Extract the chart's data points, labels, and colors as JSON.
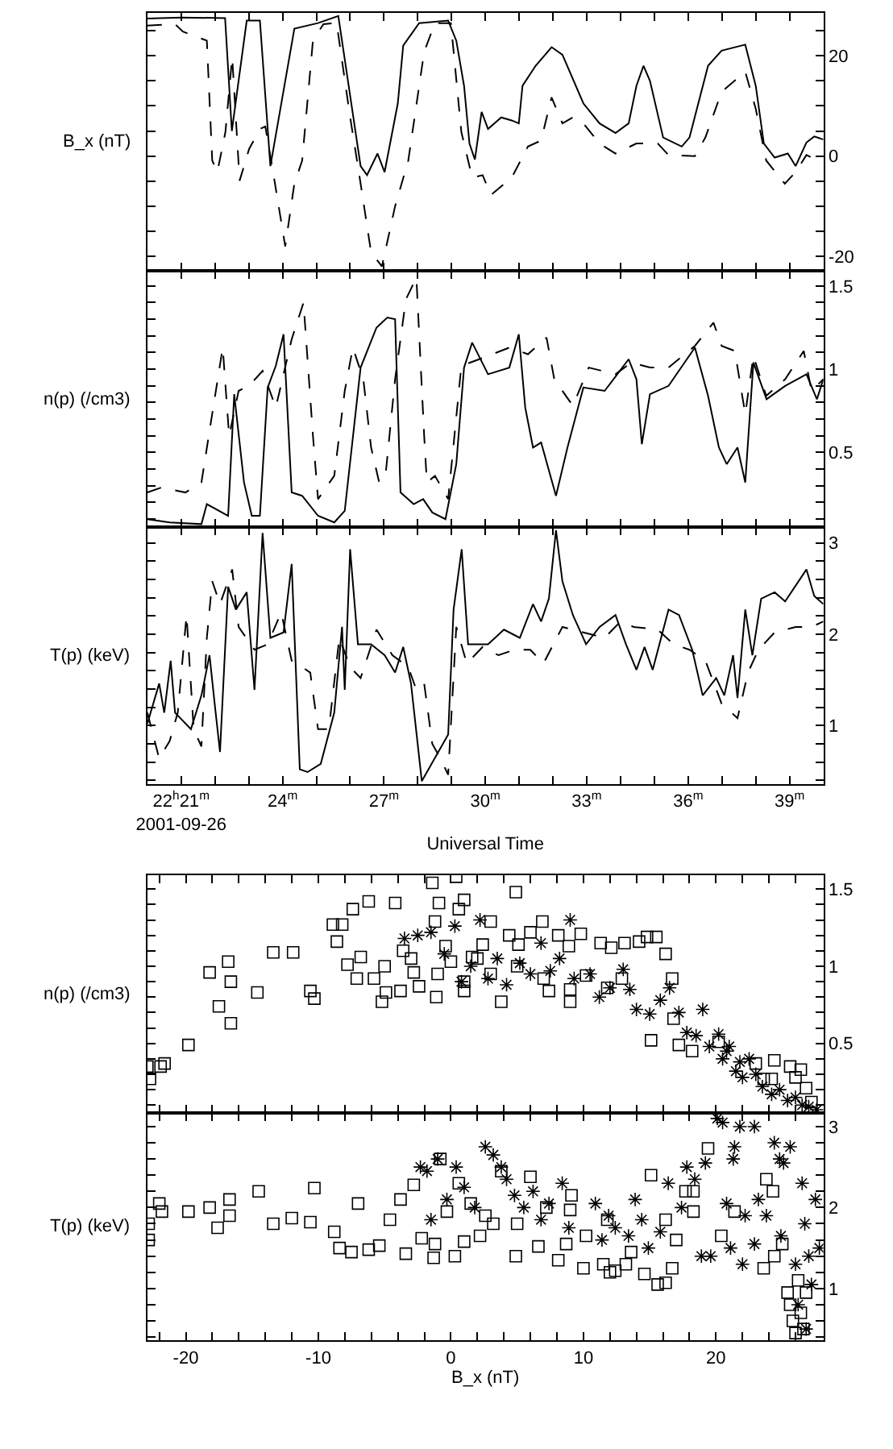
{
  "chart_data": [
    {
      "type": "line",
      "ylabel": "B_x (nT)",
      "tick_labels": "y",
      "xlim": [
        20,
        40
      ],
      "xticks": [
        {
          "value": 21,
          "label": "22$^{h}$21$^{m}$\n2001-09-26"
        },
        {
          "value": 22,
          "label": null
        },
        {
          "value": 23,
          "label": null
        },
        {
          "value": 24,
          "label": "24$^{m}$"
        },
        {
          "value": 25,
          "label": null
        },
        {
          "value": 26,
          "label": null
        },
        {
          "value": 27,
          "label": "27$^{m}$"
        },
        {
          "value": 28,
          "label": null
        },
        {
          "value": 29,
          "label": null
        },
        {
          "value": 30,
          "label": "30$^{m}$"
        },
        {
          "value": 31,
          "label": null
        },
        {
          "value": 32,
          "label": null
        },
        {
          "value": 33,
          "label": "33$^{m}$"
        },
        {
          "value": 34,
          "label": null
        },
        {
          "value": 35,
          "label": null
        },
        {
          "value": 36,
          "label": "36$^{m}$"
        },
        {
          "value": 37,
          "label": null
        },
        {
          "value": 38,
          "label": null
        },
        {
          "value": 39,
          "label": "39$^{m}$"
        }
      ],
      "ylim": [
        -22.9,
        28.5
      ],
      "yticks": [
        -20,
        {
          "value": -15,
          "label": null
        },
        {
          "value": -10,
          "label": null
        },
        {
          "value": -5,
          "label": null
        },
        0,
        {
          "value": 5,
          "label": null
        },
        {
          "value": 10,
          "label": null
        },
        {
          "value": 15,
          "label": null
        },
        20,
        {
          "value": 25,
          "label": null
        }
      ],
      "series": [
        {
          "color": "#000000",
          "line_style": "solid",
          "x": [
            20,
            21,
            22.3,
            22.5,
            22.94,
            23.33,
            23.64,
            24.35,
            25.05,
            25.65,
            26.31,
            26.5,
            26.81,
            27.02,
            27.41,
            27.57,
            28.04,
            28.9,
            29.14,
            29.37,
            29.53,
            29.69,
            29.89,
            30.08,
            30.47,
            30.78,
            30.99,
            31.1,
            31.49,
            31.96,
            32.28,
            32.9,
            33.38,
            33.85,
            34.24,
            34.47,
            34.68,
            34.87,
            35.26,
            35.81,
            36.04,
            36.59,
            36.99,
            37.69,
            38.0,
            38.24,
            38.56,
            38.95,
            39.18,
            39.5,
            39.73,
            40
          ],
          "values": [
            27.4,
            27.6,
            27.5,
            5,
            27,
            27,
            -2,
            25.4,
            26.5,
            27.9,
            -2,
            -3.8,
            0.5,
            -3.2,
            10.5,
            22,
            26.5,
            27,
            23,
            14,
            2.5,
            -0.7,
            8.8,
            5.4,
            7.7,
            7.1,
            6.5,
            14,
            18,
            21.7,
            20.2,
            10.5,
            6.5,
            4.6,
            6.5,
            14,
            18,
            15,
            3.7,
            1.9,
            3.7,
            18,
            21,
            22.2,
            14,
            2.5,
            -0.3,
            0.5,
            -2,
            2.7,
            3.9,
            3.3
          ]
        },
        {
          "color": "#000000",
          "line_style": "dashed",
          "x": [
            20,
            20.82,
            21.05,
            21.76,
            21.92,
            22.07,
            22.31,
            22.51,
            22.73,
            23.01,
            23.33,
            23.49,
            23.72,
            24.08,
            24.35,
            24.58,
            24.9,
            25.21,
            25.6,
            25.99,
            26.31,
            26.62,
            26.94,
            27.33,
            27.72,
            28.19,
            28.51,
            28.98,
            29.29,
            29.61,
            29.92,
            30.16,
            30.78,
            31.26,
            31.65,
            31.96,
            32.28,
            32.59,
            32.9,
            33.38,
            33.85,
            34.47,
            35.1,
            35.42,
            36.2,
            36.51,
            36.99,
            37.69,
            38.0,
            38.31,
            38.86,
            39.18,
            39.5,
            40
          ],
          "values": [
            26,
            26.3,
            24.8,
            23,
            -0.9,
            -3.2,
            4.8,
            19.7,
            -4.9,
            1.4,
            5.4,
            5.9,
            -3.2,
            -18,
            -5.5,
            -0.9,
            23.1,
            26.3,
            26.5,
            8.2,
            -5.5,
            -19.2,
            -22,
            -10,
            -0.9,
            20.8,
            26.5,
            26.5,
            4.8,
            -4.3,
            -3.8,
            -7.8,
            -4.3,
            1.9,
            3.1,
            11.7,
            6.5,
            7.7,
            6.5,
            2.5,
            0.5,
            2.5,
            2.5,
            0.2,
            0,
            3.7,
            12.8,
            16.8,
            9.4,
            -0.9,
            -5.5,
            -3.2,
            0.2,
            -1.5
          ]
        }
      ]
    },
    {
      "type": "line",
      "ylabel": "n(p) (/cm3)",
      "tick_labels": "y",
      "xlim": [
        20,
        40
      ],
      "xticks": [
        {
          "value": 21,
          "label": "22$^{h}$21$^{m}$\n2001-09-26"
        },
        {
          "value": 22,
          "label": null
        },
        {
          "value": 23,
          "label": null
        },
        {
          "value": 24,
          "label": "24$^{m}$"
        },
        {
          "value": 25,
          "label": null
        },
        {
          "value": 26,
          "label": null
        },
        {
          "value": 27,
          "label": "27$^{m}$"
        },
        {
          "value": 28,
          "label": null
        },
        {
          "value": 29,
          "label": null
        },
        {
          "value": 30,
          "label": "30$^{m}$"
        },
        {
          "value": 31,
          "label": null
        },
        {
          "value": 32,
          "label": null
        },
        {
          "value": 33,
          "label": "33$^{m}$"
        },
        {
          "value": 34,
          "label": null
        },
        {
          "value": 35,
          "label": null
        },
        {
          "value": 36,
          "label": "36$^{m}$"
        },
        {
          "value": 37,
          "label": null
        },
        {
          "value": 38,
          "label": null
        },
        {
          "value": 39,
          "label": "39$^{m}$"
        }
      ],
      "ylim": [
        0.05,
        1.59
      ],
      "yticks": [
        {
          "value": 0.1,
          "label": null
        },
        {
          "value": 0.2,
          "label": null
        },
        {
          "value": 0.3,
          "label": null
        },
        {
          "value": 0.4,
          "label": null
        },
        0.5,
        {
          "value": 0.6,
          "label": null
        },
        {
          "value": 0.7,
          "label": null
        },
        {
          "value": 0.8,
          "label": null
        },
        {
          "value": 0.9,
          "label": null
        },
        1,
        {
          "value": 1.1,
          "label": null
        },
        {
          "value": 1.2,
          "label": null
        },
        {
          "value": 1.3,
          "label": null
        },
        {
          "value": 1.4,
          "label": null
        },
        1.5
      ],
      "series": [
        {
          "color": "#000000",
          "line_style": "solid",
          "x": [
            20,
            20.66,
            21.6,
            21.76,
            22.39,
            22.57,
            22.86,
            23.09,
            23.33,
            23.56,
            23.8,
            24.03,
            24.27,
            24.58,
            25.05,
            25.53,
            25.84,
            26.31,
            26.78,
            27.1,
            27.33,
            27.49,
            27.88,
            28.16,
            28.43,
            28.82,
            29.14,
            29.37,
            29.61,
            30.08,
            30.71,
            30.99,
            31.18,
            31.41,
            31.65,
            32.09,
            32.43,
            32.9,
            33.53,
            34.24,
            34.47,
            34.63,
            34.87,
            35.42,
            36.2,
            36.59,
            36.91,
            37.14,
            37.46,
            37.69,
            37.93,
            38.32,
            38.87,
            39.5,
            39.81,
            40
          ],
          "values": [
            0.1,
            0.08,
            0.07,
            0.19,
            0.12,
            0.85,
            0.32,
            0.12,
            0.12,
            0.89,
            1.02,
            1.21,
            0.26,
            0.24,
            0.12,
            0.08,
            0.15,
            1.01,
            1.25,
            1.31,
            1.3,
            0.26,
            0.19,
            0.22,
            0.14,
            0.1,
            0.43,
            1.01,
            1.16,
            0.97,
            1.01,
            1.21,
            0.77,
            0.53,
            0.56,
            0.24,
            0.53,
            0.89,
            0.87,
            1.06,
            0.94,
            0.55,
            0.85,
            0.9,
            1.13,
            0.84,
            0.53,
            0.43,
            0.53,
            0.32,
            1.04,
            0.82,
            0.9,
            0.97,
            0.82,
            0.94
          ]
        },
        {
          "color": "#000000",
          "line_style": "dashed",
          "x": [
            20,
            20.42,
            21.13,
            21.6,
            21.84,
            22.23,
            22.42,
            22.7,
            23.01,
            23.41,
            23.8,
            24.27,
            24.62,
            24.9,
            25.05,
            25.53,
            25.84,
            26.08,
            26.39,
            26.62,
            26.86,
            27.06,
            27.33,
            27.65,
            27.96,
            28.19,
            28.27,
            28.51,
            28.9,
            29.29,
            30.08,
            30.71,
            31.26,
            31.81,
            32.04,
            32.59,
            33.06,
            33.85,
            34.32,
            34.87,
            35.42,
            36.2,
            36.75,
            36.99,
            37.38,
            37.69,
            37.93,
            38.31,
            38.87,
            39.42,
            39.65,
            40
          ],
          "values": [
            0.26,
            0.29,
            0.26,
            0.32,
            0.63,
            1.13,
            0.6,
            0.87,
            0.9,
            0.99,
            0.77,
            1.18,
            1.4,
            0.6,
            0.22,
            0.36,
            0.87,
            1.13,
            0.94,
            0.53,
            0.32,
            0.39,
            0.94,
            1.42,
            1.55,
            0.6,
            0.32,
            0.36,
            0.22,
            1.02,
            1.08,
            1.13,
            1.09,
            1.19,
            0.94,
            0.78,
            1.01,
            0.97,
            1.04,
            1.01,
            1.01,
            1.14,
            1.28,
            1.14,
            1.11,
            0.73,
            1.08,
            0.84,
            0.94,
            1.11,
            0.87,
            0.94
          ]
        }
      ]
    },
    {
      "type": "line",
      "ylabel": "T(p) (keV)",
      "xlabel": "Universal Time",
      "xlim": [
        20,
        40
      ],
      "xticks": [
        {
          "value": 21,
          "label": "22$^{h}$21$^{m}$\n2001-09-26"
        },
        {
          "value": 22,
          "label": null
        },
        {
          "value": 23,
          "label": null
        },
        {
          "value": 24,
          "label": "24$^{m}$"
        },
        {
          "value": 25,
          "label": null
        },
        {
          "value": 26,
          "label": null
        },
        {
          "value": 27,
          "label": "27$^{m}$"
        },
        {
          "value": 28,
          "label": null
        },
        {
          "value": 29,
          "label": null
        },
        {
          "value": 30,
          "label": "30$^{m}$"
        },
        {
          "value": 31,
          "label": null
        },
        {
          "value": 32,
          "label": null
        },
        {
          "value": 33,
          "label": "33$^{m}$"
        },
        {
          "value": 34,
          "label": null
        },
        {
          "value": 35,
          "label": null
        },
        {
          "value": 36,
          "label": "36$^{m}$"
        },
        {
          "value": 37,
          "label": null
        },
        {
          "value": 38,
          "label": null
        },
        {
          "value": 39,
          "label": "39$^{m}$"
        }
      ],
      "ylim": [
        0.36,
        3.17
      ],
      "yticks": [
        {
          "value": 0.4,
          "label": null
        },
        {
          "value": 0.6,
          "label": null
        },
        {
          "value": 0.8,
          "label": null
        },
        1,
        {
          "value": 1.2,
          "label": null
        },
        {
          "value": 1.4,
          "label": null
        },
        {
          "value": 1.6,
          "label": null
        },
        {
          "value": 1.8,
          "label": null
        },
        2,
        {
          "value": 2.2,
          "label": null
        },
        {
          "value": 2.4,
          "label": null
        },
        {
          "value": 2.6,
          "label": null
        },
        {
          "value": 2.8,
          "label": null
        },
        3
      ],
      "series": [
        {
          "color": "#000000",
          "line_style": "solid",
          "x": [
            20,
            20.35,
            20.5,
            20.69,
            20.82,
            21.29,
            21.6,
            21.84,
            22.0,
            22.15,
            22.39,
            22.62,
            22.94,
            23.17,
            23.41,
            23.64,
            24.03,
            24.27,
            24.51,
            24.74,
            25.13,
            25.53,
            25.76,
            25.84,
            26.0,
            26.23,
            26.62,
            27.02,
            27.33,
            27.57,
            27.8,
            28.12,
            28.9,
            29.06,
            29.3,
            29.49,
            30.08,
            30.55,
            31.02,
            31.41,
            31.65,
            31.88,
            32.09,
            32.28,
            32.59,
            32.98,
            33.38,
            33.85,
            34.16,
            34.47,
            34.71,
            34.95,
            35.42,
            35.73,
            36.12,
            36.43,
            36.83,
            37.07,
            37.33,
            37.46,
            37.69,
            37.9,
            38.16,
            38.56,
            38.87,
            39.5,
            39.73,
            40
          ],
          "values": [
            1.02,
            1.46,
            1.14,
            1.71,
            1.14,
            0.96,
            1.33,
            1.77,
            1.21,
            0.71,
            2.52,
            2.27,
            2.46,
            1.39,
            3.11,
            1.96,
            2.02,
            2.77,
            0.52,
            0.49,
            0.58,
            1.14,
            2.08,
            1.39,
            2.93,
            1.89,
            1.89,
            1.77,
            1.58,
            1.86,
            1.46,
            0.39,
            0.9,
            2.27,
            2.93,
            1.89,
            1.89,
            2.05,
            1.96,
            2.33,
            2.14,
            2.39,
            3.14,
            2.58,
            2.21,
            1.89,
            2.08,
            2.21,
            1.89,
            1.61,
            1.86,
            1.61,
            2.27,
            2.21,
            1.83,
            1.33,
            1.52,
            1.33,
            1.77,
            1.3,
            2.27,
            1.77,
            2.39,
            2.46,
            2.36,
            2.71,
            2.42,
            2.33
          ]
        },
        {
          "color": "#000000",
          "line_style": "dashed",
          "x": [
            20,
            20.35,
            20.66,
            20.9,
            21.16,
            21.37,
            21.6,
            21.76,
            21.92,
            22.15,
            22.51,
            22.7,
            23.17,
            23.56,
            23.96,
            24.27,
            24.58,
            24.82,
            25.05,
            25.37,
            25.68,
            26.0,
            26.31,
            26.78,
            27.25,
            27.72,
            27.96,
            28.19,
            28.43,
            28.67,
            28.9,
            29.14,
            29.45,
            29.92,
            30.39,
            30.86,
            31.33,
            31.72,
            32.28,
            32.9,
            33.53,
            34.0,
            34.39,
            35.1,
            35.57,
            36.04,
            36.51,
            36.99,
            37.46,
            37.77,
            38.08,
            38.56,
            39.18,
            39.65,
            40
          ],
          "values": [
            1.14,
            0.64,
            0.83,
            1.14,
            2.21,
            0.96,
            0.77,
            1.96,
            2.58,
            2.33,
            2.71,
            2.08,
            1.83,
            1.89,
            2.24,
            1.71,
            1.64,
            1.58,
            0.96,
            0.96,
            1.96,
            1.64,
            1.52,
            2.05,
            1.77,
            1.64,
            1.39,
            1.46,
            0.8,
            0.64,
            0.46,
            2.08,
            1.68,
            1.86,
            1.77,
            1.83,
            1.83,
            1.68,
            2.08,
            2.02,
            1.96,
            2.14,
            2.08,
            2.05,
            1.89,
            1.83,
            1.71,
            1.24,
            1.08,
            1.58,
            1.83,
            2.02,
            2.08,
            2.08,
            2.14
          ]
        }
      ]
    },
    {
      "type": "scatter",
      "ylabel": "n(p) (/cm3)",
      "tick_labels": "y",
      "xlim": [
        -22.9,
        28.1
      ],
      "xticks": [
        {
          "value": -22,
          "label": null
        },
        -20,
        {
          "value": -18,
          "label": null
        },
        {
          "value": -16,
          "label": null
        },
        {
          "value": -14,
          "label": null
        },
        {
          "value": -12,
          "label": null
        },
        -10,
        {
          "value": -8,
          "label": null
        },
        {
          "value": -6,
          "label": null
        },
        {
          "value": -4,
          "label": null
        },
        {
          "value": -2,
          "label": null
        },
        0,
        {
          "value": 2,
          "label": null
        },
        {
          "value": 4,
          "label": null
        },
        {
          "value": 6,
          "label": null
        },
        {
          "value": 8,
          "label": null
        },
        10,
        {
          "value": 12,
          "label": null
        },
        {
          "value": 14,
          "label": null
        },
        {
          "value": 16,
          "label": null
        },
        {
          "value": 18,
          "label": null
        },
        20,
        {
          "value": 22,
          "label": null
        },
        {
          "value": 24,
          "label": null
        },
        {
          "value": 26,
          "label": null
        },
        {
          "value": 28,
          "label": null
        }
      ],
      "ylim": [
        0.05,
        1.59
      ],
      "yticks": [
        {
          "value": 0.1,
          "label": null
        },
        {
          "value": 0.2,
          "label": null
        },
        {
          "value": 0.3,
          "label": null
        },
        {
          "value": 0.4,
          "label": null
        },
        0.5,
        {
          "value": 0.6,
          "label": null
        },
        {
          "value": 0.7,
          "label": null
        },
        {
          "value": 0.8,
          "label": null
        },
        {
          "value": 0.9,
          "label": null
        },
        1,
        {
          "value": 1.1,
          "label": null
        },
        {
          "value": 1.2,
          "label": null
        },
        {
          "value": 1.3,
          "label": null
        },
        {
          "value": 1.4,
          "label": null
        },
        1.5
      ],
      "series": [
        {
          "color": "#000000",
          "marker": "square",
          "x": [
            -22.9,
            -22.7,
            -21.9,
            -21.6,
            -19.8,
            -18.2,
            -17.5,
            -16.8,
            -16.6,
            -16.6,
            -14.6,
            -13.4,
            -11.9,
            -10.6,
            -10.3,
            -8.9,
            -8.6,
            -8.2,
            -7.8,
            -7.4,
            -7.1,
            -6.8,
            -6.2,
            -5.8,
            -5.2,
            -4.9,
            -4.2,
            -3.8,
            -3.6,
            -2.8,
            -2.4,
            -1.4,
            -1.2,
            -1.1,
            -0.9,
            -0.4,
            0.4,
            0.6,
            1.0,
            1.0,
            1.6,
            2.4,
            3.0,
            3.8,
            4.4,
            4.9,
            5.1,
            6.0,
            6.9,
            7.4,
            8.1,
            8.9,
            9.0,
            9.8,
            10.2,
            11.3,
            11.8,
            12.1,
            12.9,
            13.1,
            14.2,
            14.8,
            15.1,
            15.5,
            16.2,
            16.7,
            16.8,
            17.2,
            18.2,
            20.2,
            23.0,
            23.6,
            24.2,
            24.4,
            25.6,
            26.0,
            26.4,
            26.8,
            27.2,
            -5,
            -3,
            -1,
            0,
            1,
            2,
            3,
            5,
            7,
            9
          ],
          "values": [
            0.35,
            0.27,
            0.35,
            0.37,
            0.49,
            0.96,
            0.74,
            1.03,
            0.9,
            0.63,
            0.83,
            1.09,
            1.09,
            0.84,
            0.79,
            1.27,
            1.16,
            1.27,
            1.01,
            1.37,
            0.92,
            1.06,
            1.42,
            0.92,
            0.77,
            0.83,
            1.41,
            0.84,
            1.1,
            0.96,
            0.87,
            1.54,
            1.29,
            0.8,
            1.41,
            1.13,
            1.58,
            1.37,
            1.43,
            0.84,
            1.06,
            1.14,
            1.29,
            0.77,
            1.2,
            1.48,
            1.14,
            1.22,
            1.29,
            0.84,
            1.2,
            1.13,
            0.77,
            1.21,
            0.94,
            1.15,
            0.86,
            1.12,
            0.92,
            1.15,
            1.16,
            1.19,
            0.52,
            1.19,
            1.08,
            0.92,
            0.66,
            0.49,
            0.45,
            0.51,
            0.37,
            0.27,
            0.27,
            0.39,
            0.35,
            0.28,
            0.33,
            0.21,
            0.12,
            1.0,
            1.05,
            0.95,
            1.03,
            0.9,
            1.05,
            0.95,
            1.0,
            0.92,
            0.85
          ]
        },
        {
          "color": "#000000",
          "marker": "cross",
          "x": [
            -3.5,
            -2.5,
            -1.5,
            -0.5,
            0.3,
            0.8,
            1.5,
            2.2,
            2.8,
            3.5,
            4.2,
            5.2,
            6.0,
            6.8,
            7.5,
            8.2,
            9.0,
            9.3,
            10.5,
            11.2,
            12.0,
            13.0,
            13.5,
            14.0,
            15.0,
            15.8,
            16.5,
            17.2,
            17.8,
            18.5,
            19.0,
            19.5,
            20.2,
            20.5,
            20.8,
            21.0,
            21.5,
            21.8,
            22.0,
            22.5,
            23.0,
            23.5,
            24.2,
            24.8,
            25.4,
            26.0,
            26.5,
            27.0,
            27.6
          ],
          "values": [
            1.18,
            1.2,
            1.22,
            1.08,
            1.26,
            0.9,
            1.0,
            1.3,
            0.92,
            1.05,
            0.88,
            1.02,
            0.95,
            1.15,
            0.97,
            1.05,
            1.3,
            0.92,
            0.95,
            0.8,
            0.86,
            0.98,
            0.85,
            0.72,
            0.69,
            0.78,
            0.86,
            0.7,
            0.57,
            0.55,
            0.72,
            0.48,
            0.56,
            0.4,
            0.45,
            0.48,
            0.32,
            0.38,
            0.28,
            0.4,
            0.3,
            0.22,
            0.17,
            0.2,
            0.13,
            0.15,
            0.1,
            0.09,
            0.07
          ]
        }
      ]
    },
    {
      "type": "scatter",
      "ylabel": "T(p) (keV)",
      "xlabel": "B_x (nT)",
      "xlim": [
        -22.9,
        28.1
      ],
      "xticks": [
        {
          "value": -22,
          "label": null
        },
        -20,
        {
          "value": -18,
          "label": null
        },
        {
          "value": -16,
          "label": null
        },
        {
          "value": -14,
          "label": null
        },
        {
          "value": -12,
          "label": null
        },
        -10,
        {
          "value": -8,
          "label": null
        },
        {
          "value": -6,
          "label": null
        },
        {
          "value": -4,
          "label": null
        },
        {
          "value": -2,
          "label": null
        },
        0,
        {
          "value": 2,
          "label": null
        },
        {
          "value": 4,
          "label": null
        },
        {
          "value": 6,
          "label": null
        },
        {
          "value": 8,
          "label": null
        },
        10,
        {
          "value": 12,
          "label": null
        },
        {
          "value": 14,
          "label": null
        },
        {
          "value": 16,
          "label": null
        },
        {
          "value": 18,
          "label": null
        },
        20,
        {
          "value": 22,
          "label": null
        },
        {
          "value": 24,
          "label": null
        },
        {
          "value": 26,
          "label": null
        },
        {
          "value": 28,
          "label": null
        }
      ],
      "ylim": [
        0.36,
        3.17
      ],
      "yticks": [
        {
          "value": 0.4,
          "label": null
        },
        {
          "value": 0.6,
          "label": null
        },
        {
          "value": 0.8,
          "label": null
        },
        1,
        {
          "value": 1.2,
          "label": null
        },
        {
          "value": 1.4,
          "label": null
        },
        {
          "value": 1.6,
          "label": null
        },
        {
          "value": 1.8,
          "label": null
        },
        2,
        {
          "value": 2.2,
          "label": null
        },
        {
          "value": 2.4,
          "label": null
        },
        {
          "value": 2.6,
          "label": null
        },
        {
          "value": 2.8,
          "label": null
        },
        3
      ],
      "series": [
        {
          "color": "#000000",
          "marker": "square",
          "x": [
            -22.8,
            -22.8,
            -22.0,
            -21.8,
            -19.8,
            -18.2,
            -17.6,
            -16.7,
            -16.7,
            -14.5,
            -13.4,
            -12.0,
            -10.6,
            -10.3,
            -8.8,
            -8.4,
            -7.5,
            -7.0,
            -6.2,
            -5.4,
            -4.6,
            -3.8,
            -3.4,
            -2.8,
            -2.2,
            -1.3,
            -1.2,
            -0.8,
            -0.3,
            0.3,
            0.6,
            1.0,
            1.5,
            2.2,
            2.6,
            3.2,
            3.8,
            4.9,
            5.0,
            6.0,
            6.6,
            7.2,
            8.1,
            8.7,
            9.0,
            9.1,
            10.0,
            10.2,
            11.5,
            11.8,
            12.0,
            12.4,
            13.2,
            13.6,
            14.6,
            15.1,
            15.6,
            16.2,
            16.2,
            16.7,
            17.0,
            17.7,
            18.3,
            18.3,
            19.4,
            20.4,
            21.4,
            23.6,
            23.8,
            24.3,
            24.4,
            25.0,
            25.4,
            25.6,
            25.8,
            26.0,
            26.2,
            26.4,
            26.6,
            26.8
          ],
          "values": [
            1.8,
            1.6,
            2.05,
            1.95,
            1.95,
            2.0,
            1.75,
            2.1,
            1.9,
            2.2,
            1.8,
            1.87,
            1.82,
            2.24,
            1.7,
            1.5,
            1.45,
            2.05,
            1.48,
            1.53,
            1.85,
            2.1,
            1.43,
            2.28,
            1.62,
            1.38,
            1.55,
            2.6,
            1.95,
            1.4,
            2.3,
            1.58,
            2.05,
            1.65,
            1.9,
            1.8,
            2.45,
            1.4,
            1.8,
            2.38,
            1.52,
            2.0,
            1.35,
            1.55,
            1.97,
            2.15,
            1.25,
            1.65,
            1.3,
            1.85,
            1.2,
            1.22,
            1.3,
            1.45,
            1.18,
            2.4,
            1.05,
            1.07,
            1.85,
            1.25,
            1.6,
            2.2,
            1.95,
            2.2,
            2.73,
            1.65,
            1.95,
            1.25,
            2.35,
            2.2,
            1.4,
            1.55,
            0.95,
            0.8,
            0.6,
            0.45,
            1.1,
            0.7,
            0.5,
            0.95
          ]
        },
        {
          "color": "#000000",
          "marker": "cross",
          "x": [
            -2.3,
            -1.8,
            -1.5,
            -1.0,
            -0.3,
            0.4,
            1.0,
            1.8,
            2.6,
            3.2,
            3.8,
            4.2,
            4.8,
            5.5,
            6.2,
            6.8,
            7.4,
            8.4,
            8.9,
            10.9,
            11.4,
            11.9,
            12.4,
            13.4,
            13.9,
            14.4,
            14.9,
            15.8,
            16.4,
            17.4,
            17.8,
            18.4,
            18.9,
            19.2,
            19.6,
            20.1,
            20.5,
            20.8,
            21.1,
            21.3,
            21.4,
            21.8,
            22.0,
            22.2,
            22.9,
            22.9,
            23.2,
            23.8,
            24.4,
            24.8,
            24.9,
            25.1,
            25.6,
            26.0,
            26.2,
            26.5,
            26.7,
            26.8,
            27.0,
            27.2,
            27.5,
            27.8
          ],
          "values": [
            2.5,
            2.45,
            1.85,
            2.6,
            2.1,
            2.5,
            2.25,
            2.0,
            2.75,
            2.65,
            2.5,
            2.35,
            2.15,
            2.0,
            2.2,
            1.85,
            2.05,
            2.3,
            1.75,
            2.05,
            1.6,
            1.9,
            1.75,
            1.65,
            2.1,
            1.85,
            1.5,
            1.7,
            2.3,
            2.0,
            2.5,
            2.35,
            1.4,
            2.55,
            1.4,
            3.1,
            3.05,
            2.05,
            1.5,
            2.6,
            2.75,
            3.0,
            1.3,
            1.9,
            3.0,
            1.55,
            2.1,
            1.9,
            2.8,
            2.6,
            1.65,
            2.55,
            2.75,
            1.3,
            0.8,
            2.3,
            1.8,
            0.5,
            1.4,
            1.05,
            2.1,
            1.5
          ]
        }
      ]
    }
  ]
}
